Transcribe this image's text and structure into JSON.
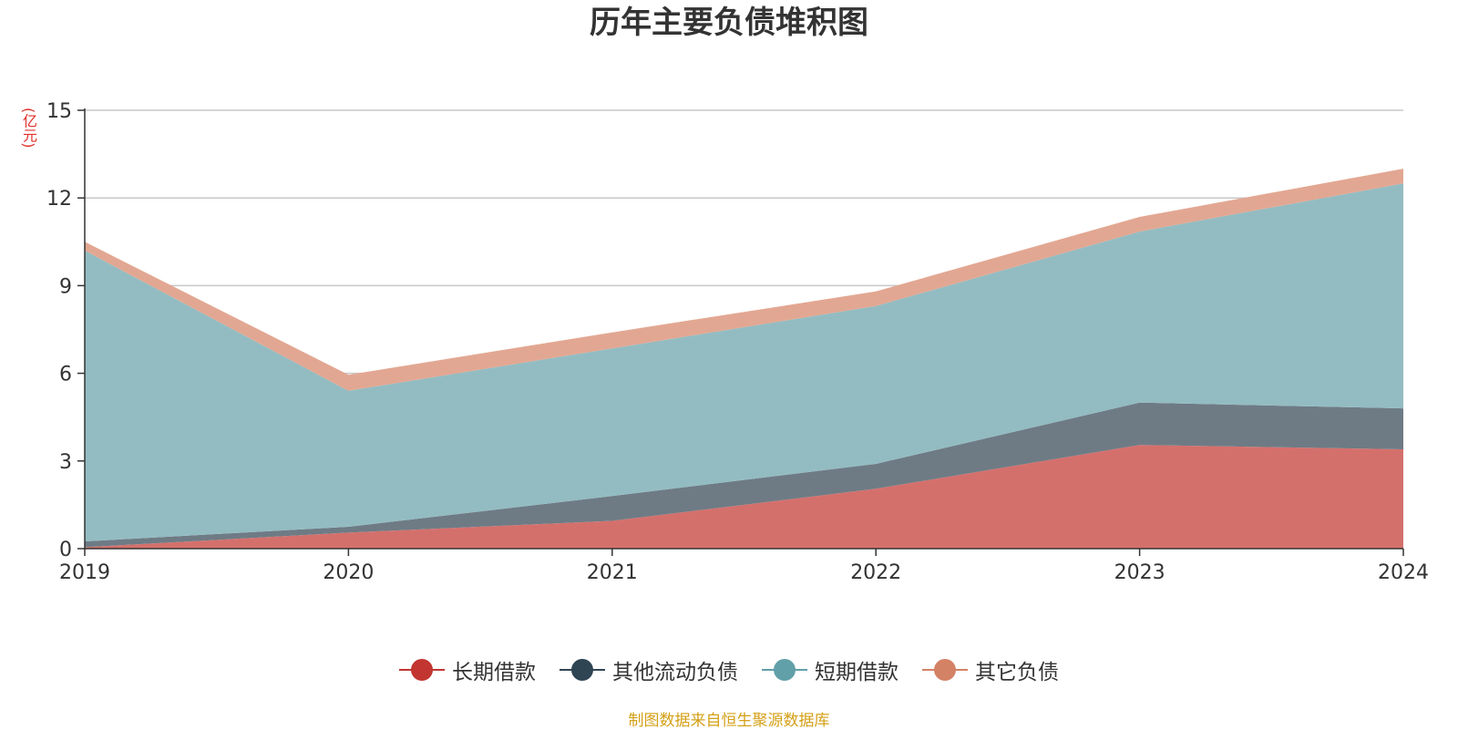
{
  "chart_data": {
    "type": "area",
    "stacked": true,
    "title": "历年主要负债堆积图",
    "ylabel": "(亿元)",
    "x": [
      "2019",
      "2020",
      "2021",
      "2022",
      "2023",
      "2024"
    ],
    "ylim": [
      0,
      15
    ],
    "yticks": [
      "0",
      "3",
      "6",
      "9",
      "12",
      "15"
    ],
    "grid": true,
    "legend_position": "bottom",
    "series": [
      {
        "name": "长期借款",
        "values": [
          0.05,
          0.55,
          0.95,
          2.05,
          3.55,
          3.4
        ],
        "color": "#d4706c",
        "legend_color": "#c23531"
      },
      {
        "name": "其他流动负债",
        "values": [
          0.2,
          0.2,
          0.85,
          0.85,
          1.45,
          1.4
        ],
        "color": "#6e7b85",
        "legend_color": "#2f4554"
      },
      {
        "name": "短期借款",
        "values": [
          9.95,
          4.65,
          5.05,
          5.4,
          5.85,
          7.7
        ],
        "color": "#93bcc2",
        "legend_color": "#61a0a8"
      },
      {
        "name": "其它负债",
        "values": [
          0.3,
          0.55,
          0.55,
          0.5,
          0.5,
          0.5
        ],
        "color": "#e2a792",
        "legend_color": "#d48265"
      }
    ]
  },
  "footer": {
    "source": "制图数据来自恒生聚源数据库"
  }
}
